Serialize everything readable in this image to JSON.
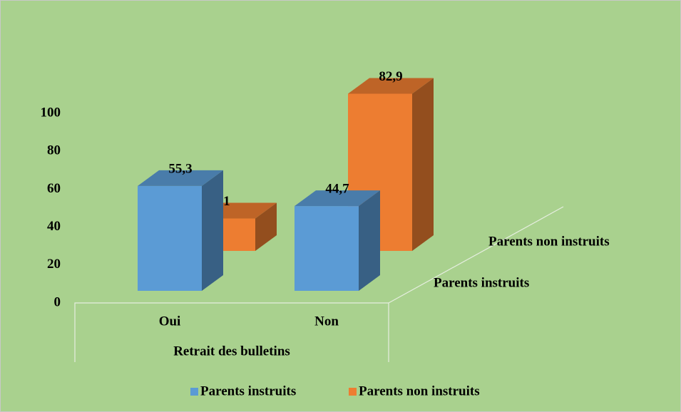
{
  "chart_data": {
    "type": "bar3d",
    "x_label": "Retrait des bulletins",
    "categories": [
      "Oui",
      "Non"
    ],
    "series": [
      {
        "name": "Parents instruits",
        "color": "#5b9bd5",
        "values": [
          55.3,
          44.7
        ],
        "value_labels": [
          "55,3",
          "44,7"
        ]
      },
      {
        "name": "Parents non instruits",
        "color": "#ed7d31",
        "values": [
          17.1,
          82.9
        ],
        "value_labels": [
          "17,1",
          "82,9"
        ]
      }
    ],
    "ylim": [
      0,
      100
    ],
    "yticks": [
      0,
      20,
      40,
      60,
      80,
      100
    ],
    "legend": "bottom"
  }
}
